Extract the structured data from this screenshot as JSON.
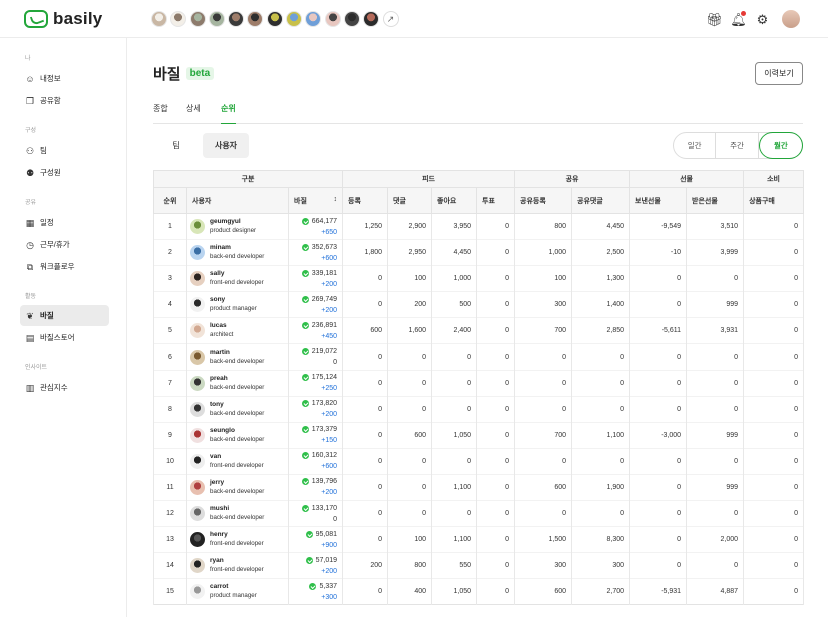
{
  "app": {
    "name": "basily"
  },
  "colors": {
    "accent": "#22a63a",
    "delta_positive": "#1e6fd9"
  },
  "header": {
    "team_avatar_count": 12,
    "expand_icon": "↗",
    "icons": [
      "gift-icon",
      "bell-icon",
      "gear-icon",
      "avatar"
    ]
  },
  "sidebar": {
    "sections": [
      {
        "title": "나",
        "items": [
          {
            "label": "내정보",
            "icon": "user-icon"
          },
          {
            "label": "공유함",
            "icon": "share-box-icon"
          }
        ]
      },
      {
        "title": "구성",
        "items": [
          {
            "label": "팀",
            "icon": "team-icon"
          },
          {
            "label": "구성원",
            "icon": "members-icon"
          }
        ]
      },
      {
        "title": "공유",
        "items": [
          {
            "label": "일정",
            "icon": "calendar-icon"
          },
          {
            "label": "근무/휴가",
            "icon": "clock-icon"
          },
          {
            "label": "워크플로우",
            "icon": "workflow-icon"
          }
        ]
      },
      {
        "title": "활동",
        "items": [
          {
            "label": "바질",
            "icon": "basil-icon",
            "active": true
          },
          {
            "label": "바질스토어",
            "icon": "store-icon"
          }
        ]
      },
      {
        "title": "인사이트",
        "items": [
          {
            "label": "관심지수",
            "icon": "chart-icon"
          }
        ]
      }
    ]
  },
  "page": {
    "title": "바질",
    "badge": "beta",
    "history_button": "이력보기",
    "tabs": [
      "종합",
      "상세",
      "순위"
    ],
    "active_tab": "순위",
    "segments": [
      "팀",
      "사용자"
    ],
    "active_segment": "사용자",
    "periods": [
      "일간",
      "주간",
      "월간"
    ],
    "active_period": "월간"
  },
  "table": {
    "groups": [
      "구분",
      "피드",
      "공유",
      "선물",
      "소비"
    ],
    "columns": [
      "순위",
      "사용자",
      "바질",
      "등록",
      "댓글",
      "좋아요",
      "투표",
      "공유등록",
      "공유댓글",
      "보낸선물",
      "받은선물",
      "상품구매"
    ],
    "sort_icon": "↕",
    "rows": [
      {
        "rank": "1",
        "name": "geumgyul",
        "role": "product designer",
        "basil": "664,177",
        "delta": "+650",
        "feed_reg": "1,250",
        "comment": "2,900",
        "like": "3,950",
        "vote": "0",
        "share_reg": "800",
        "share_comment": "4,450",
        "gift_sent": "-9,549",
        "gift_recv": "3,510",
        "purchase": "0"
      },
      {
        "rank": "2",
        "name": "minam",
        "role": "back-end developer",
        "basil": "352,673",
        "delta": "+600",
        "feed_reg": "1,800",
        "comment": "2,950",
        "like": "4,450",
        "vote": "0",
        "share_reg": "1,000",
        "share_comment": "2,500",
        "gift_sent": "-10",
        "gift_recv": "3,999",
        "purchase": "0"
      },
      {
        "rank": "3",
        "name": "sally",
        "role": "front-end developer",
        "basil": "339,181",
        "delta": "+200",
        "feed_reg": "0",
        "comment": "100",
        "like": "1,000",
        "vote": "0",
        "share_reg": "100",
        "share_comment": "1,300",
        "gift_sent": "0",
        "gift_recv": "0",
        "purchase": "0"
      },
      {
        "rank": "4",
        "name": "sony",
        "role": "product manager",
        "basil": "269,749",
        "delta": "+200",
        "feed_reg": "0",
        "comment": "200",
        "like": "500",
        "vote": "0",
        "share_reg": "300",
        "share_comment": "1,400",
        "gift_sent": "0",
        "gift_recv": "999",
        "purchase": "0"
      },
      {
        "rank": "5",
        "name": "lucas",
        "role": "architect",
        "basil": "236,891",
        "delta": "+450",
        "feed_reg": "600",
        "comment": "1,600",
        "like": "2,400",
        "vote": "0",
        "share_reg": "700",
        "share_comment": "2,850",
        "gift_sent": "-5,611",
        "gift_recv": "3,931",
        "purchase": "0"
      },
      {
        "rank": "6",
        "name": "martin",
        "role": "back-end developer",
        "basil": "219,072",
        "delta": "0",
        "feed_reg": "0",
        "comment": "0",
        "like": "0",
        "vote": "0",
        "share_reg": "0",
        "share_comment": "0",
        "gift_sent": "0",
        "gift_recv": "0",
        "purchase": "0"
      },
      {
        "rank": "7",
        "name": "preah",
        "role": "back-end developer",
        "basil": "175,124",
        "delta": "+250",
        "feed_reg": "0",
        "comment": "0",
        "like": "0",
        "vote": "0",
        "share_reg": "0",
        "share_comment": "0",
        "gift_sent": "0",
        "gift_recv": "0",
        "purchase": "0"
      },
      {
        "rank": "8",
        "name": "tony",
        "role": "back-end developer",
        "basil": "173,820",
        "delta": "+200",
        "feed_reg": "0",
        "comment": "0",
        "like": "0",
        "vote": "0",
        "share_reg": "0",
        "share_comment": "0",
        "gift_sent": "0",
        "gift_recv": "0",
        "purchase": "0"
      },
      {
        "rank": "9",
        "name": "seunglo",
        "role": "back-end developer",
        "basil": "173,379",
        "delta": "+150",
        "feed_reg": "0",
        "comment": "600",
        "like": "1,050",
        "vote": "0",
        "share_reg": "700",
        "share_comment": "1,100",
        "gift_sent": "-3,000",
        "gift_recv": "999",
        "purchase": "0"
      },
      {
        "rank": "10",
        "name": "van",
        "role": "front-end developer",
        "basil": "160,312",
        "delta": "+600",
        "feed_reg": "0",
        "comment": "0",
        "like": "0",
        "vote": "0",
        "share_reg": "0",
        "share_comment": "0",
        "gift_sent": "0",
        "gift_recv": "0",
        "purchase": "0"
      },
      {
        "rank": "11",
        "name": "jerry",
        "role": "back-end developer",
        "basil": "139,796",
        "delta": "+200",
        "feed_reg": "0",
        "comment": "0",
        "like": "1,100",
        "vote": "0",
        "share_reg": "600",
        "share_comment": "1,900",
        "gift_sent": "0",
        "gift_recv": "999",
        "purchase": "0"
      },
      {
        "rank": "12",
        "name": "mushi",
        "role": "back-end developer",
        "basil": "133,170",
        "delta": "0",
        "feed_reg": "0",
        "comment": "0",
        "like": "0",
        "vote": "0",
        "share_reg": "0",
        "share_comment": "0",
        "gift_sent": "0",
        "gift_recv": "0",
        "purchase": "0"
      },
      {
        "rank": "13",
        "name": "henry",
        "role": "front-end developer",
        "basil": "95,081",
        "delta": "+900",
        "feed_reg": "0",
        "comment": "100",
        "like": "1,100",
        "vote": "0",
        "share_reg": "1,500",
        "share_comment": "8,300",
        "gift_sent": "0",
        "gift_recv": "2,000",
        "purchase": "0"
      },
      {
        "rank": "14",
        "name": "ryan",
        "role": "front-end developer",
        "basil": "57,019",
        "delta": "+200",
        "feed_reg": "200",
        "comment": "800",
        "like": "550",
        "vote": "0",
        "share_reg": "300",
        "share_comment": "300",
        "gift_sent": "0",
        "gift_recv": "0",
        "purchase": "0"
      },
      {
        "rank": "15",
        "name": "carrot",
        "role": "product manager",
        "basil": "5,337",
        "delta": "+300",
        "feed_reg": "0",
        "comment": "400",
        "like": "1,050",
        "vote": "0",
        "share_reg": "600",
        "share_comment": "2,700",
        "gift_sent": "-5,931",
        "gift_recv": "4,887",
        "purchase": "0"
      }
    ]
  }
}
